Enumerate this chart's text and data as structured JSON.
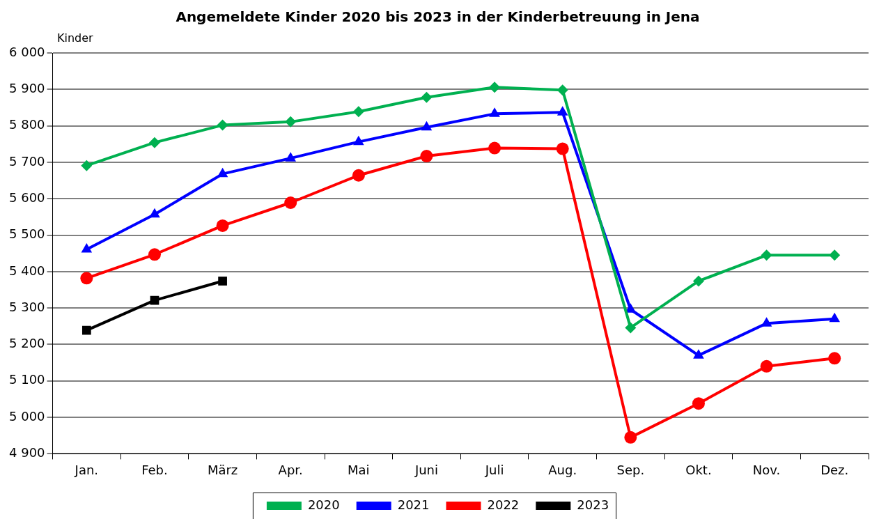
{
  "chart_data": {
    "type": "line",
    "title": "Angemeldete Kinder 2020 bis 2023 in der Kinderbetreuung in Jena",
    "ylabel": "Kinder",
    "categories": [
      "Jan.",
      "Feb.",
      "März",
      "Apr.",
      "Mai",
      "Juni",
      "Juli",
      "Aug.",
      "Sep.",
      "Okt.",
      "Nov.",
      "Dez."
    ],
    "ylim": [
      4900,
      6000
    ],
    "yticks": [
      {
        "value": 4900,
        "label": "4 900"
      },
      {
        "value": 5000,
        "label": "5 000"
      },
      {
        "value": 5100,
        "label": "5 100"
      },
      {
        "value": 5200,
        "label": "5 200"
      },
      {
        "value": 5300,
        "label": "5 300"
      },
      {
        "value": 5400,
        "label": "5 400"
      },
      {
        "value": 5500,
        "label": "5 500"
      },
      {
        "value": 5600,
        "label": "5 600"
      },
      {
        "value": 5700,
        "label": "5 700"
      },
      {
        "value": 5800,
        "label": "5 800"
      },
      {
        "value": 5900,
        "label": "5 900"
      },
      {
        "value": 6000,
        "label": "6 000"
      }
    ],
    "grid": "y",
    "legend": "bottom",
    "line_style": "solid",
    "series": [
      {
        "name": "2020",
        "color": "#00b050",
        "marker": "diamond",
        "values": [
          5691,
          5754,
          5802,
          5811,
          5839,
          5878,
          5906,
          5898,
          5246,
          5374,
          5445,
          5445
        ]
      },
      {
        "name": "2021",
        "color": "#0000ff",
        "marker": "triangle",
        "values": [
          5461,
          5557,
          5668,
          5711,
          5756,
          5796,
          5833,
          5837,
          5296,
          5170,
          5258,
          5270
        ]
      },
      {
        "name": "2022",
        "color": "#ff0000",
        "marker": "circle",
        "values": [
          5382,
          5447,
          5526,
          5589,
          5664,
          5717,
          5739,
          5737,
          4945,
          5038,
          5140,
          5162
        ]
      },
      {
        "name": "2023",
        "color": "#000000",
        "marker": "square",
        "values": [
          5239,
          5321,
          5374,
          null,
          null,
          null,
          null,
          null,
          null,
          null,
          null,
          null
        ]
      }
    ]
  }
}
